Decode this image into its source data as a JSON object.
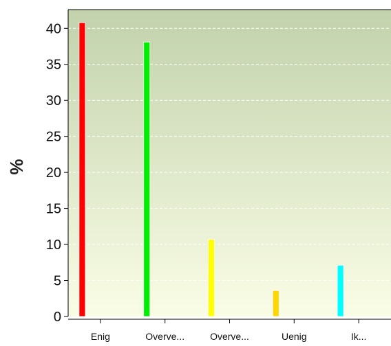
{
  "chart_data": {
    "type": "bar",
    "categories": [
      "Enig",
      "Overve...",
      "Overve...",
      "Uenig",
      "Ik..."
    ],
    "values": [
      40.8,
      38.1,
      10.7,
      3.6,
      7.1
    ],
    "colors": [
      "#ff0000",
      "#00ee00",
      "#ffff00",
      "#ffd700",
      "#00ffff"
    ],
    "title": "",
    "xlabel": "",
    "ylabel": "%",
    "ylim": [
      0,
      42.6
    ],
    "yticks": [
      0,
      5,
      10,
      15,
      20,
      25,
      30,
      35,
      40
    ],
    "grid": true,
    "background_gradient": [
      "#c2d2ac",
      "#fafde6"
    ]
  }
}
